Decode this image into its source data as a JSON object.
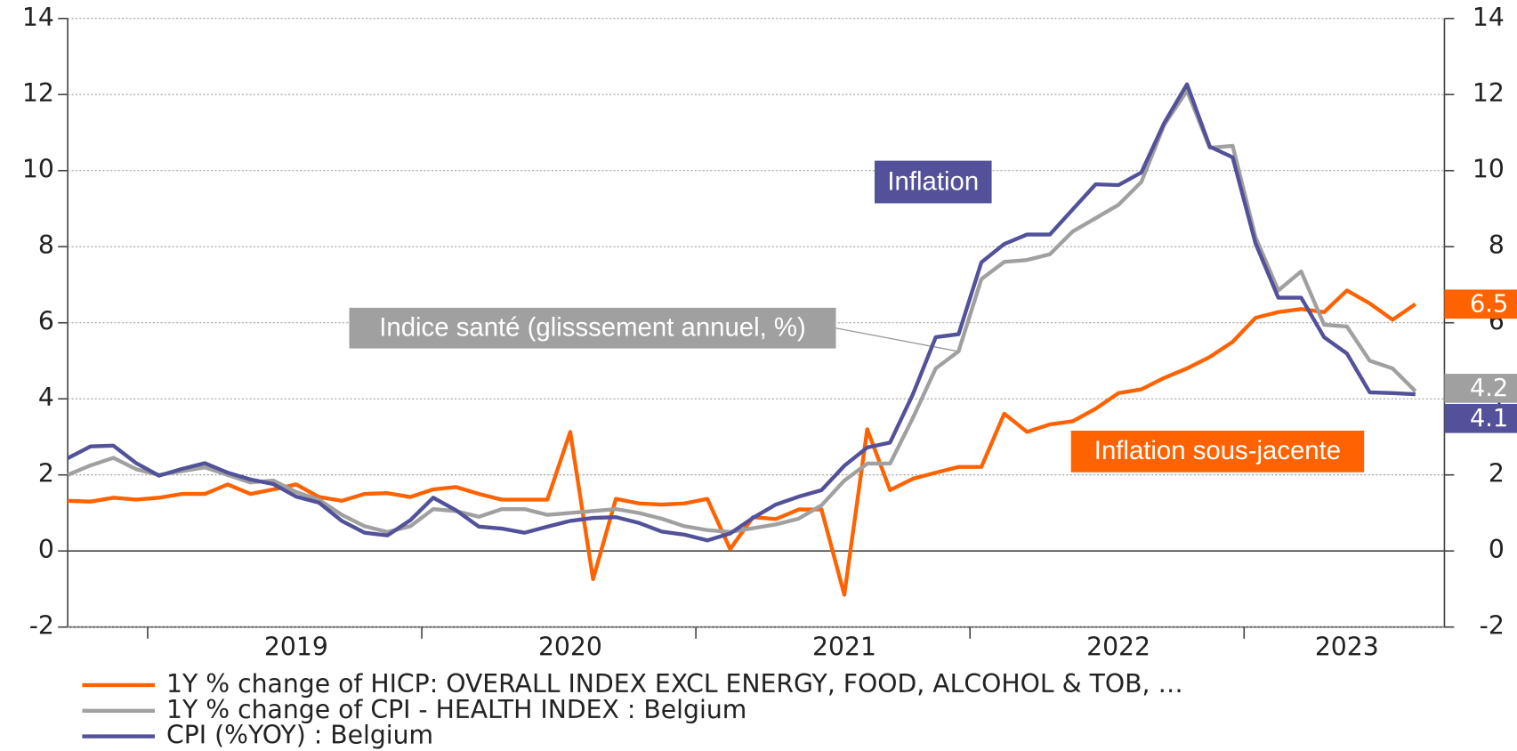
{
  "chart_data": {
    "type": "line",
    "categories": [
      null,
      null,
      null,
      null,
      null,
      null,
      null,
      null,
      null,
      null,
      "2019",
      null,
      null,
      null,
      null,
      null,
      null,
      null,
      null,
      null,
      null,
      null,
      "2020",
      null,
      null,
      null,
      null,
      null,
      null,
      null,
      null,
      null,
      null,
      null,
      "2021",
      null,
      null,
      null,
      null,
      null,
      null,
      null,
      null,
      null,
      null,
      null,
      "2022",
      null,
      null,
      null,
      null,
      null,
      null,
      null,
      null,
      null,
      "2023",
      null,
      null,
      null
    ],
    "ylim": [
      -2,
      14
    ],
    "yticks": [
      -2,
      0,
      2,
      4,
      6,
      8,
      10,
      12,
      14
    ],
    "y2lim": [
      -2,
      14
    ],
    "y2ticks": [
      -2,
      0,
      2,
      4,
      6,
      8,
      10,
      12,
      14
    ],
    "grid": true,
    "legend": "bottom",
    "series": [
      {
        "name": "1Y % change of HICP: OVERALL INDEX EXCL ENERGY, FOOD, ALCOHOL & TOB, …",
        "color": "#ff6200",
        "values": [
          1.32,
          1.3,
          1.4,
          1.35,
          1.4,
          1.5,
          1.5,
          1.75,
          1.5,
          1.62,
          1.75,
          1.42,
          1.32,
          1.5,
          1.52,
          1.42,
          1.62,
          1.68,
          1.5,
          1.35,
          1.35,
          1.35,
          3.13,
          -0.74,
          1.37,
          1.25,
          1.22,
          1.25,
          1.37,
          0.05,
          0.89,
          0.84,
          1.09,
          1.09,
          -1.15,
          3.2,
          1.6,
          1.9,
          2.06,
          2.21,
          2.21,
          3.61,
          3.13,
          3.33,
          3.41,
          3.74,
          4.15,
          4.25,
          4.55,
          4.8,
          5.1,
          5.5,
          6.13,
          6.28,
          6.36,
          6.28,
          6.85,
          6.51,
          6.08,
          6.49
        ],
        "value_labels": [
          null,
          null,
          null,
          null,
          null,
          null,
          null,
          null,
          null,
          null,
          null,
          null,
          null,
          null,
          null,
          null,
          null,
          null,
          null,
          null,
          null,
          null,
          null,
          null,
          null,
          null,
          null,
          null,
          null,
          null,
          null,
          null,
          null,
          null,
          null,
          null,
          null,
          null,
          null,
          null,
          null,
          null,
          null,
          null,
          null,
          null,
          null,
          null,
          null,
          null,
          null,
          null,
          null,
          null,
          null,
          null,
          null,
          null,
          null,
          "6.5"
        ]
      },
      {
        "name": "1Y % change of CPI - HEALTH INDEX : Belgium",
        "color": "#a0a0a0",
        "values": [
          2.0,
          2.25,
          2.45,
          2.15,
          2.0,
          2.1,
          2.2,
          2.0,
          1.8,
          1.85,
          1.55,
          1.35,
          0.95,
          0.65,
          0.5,
          0.65,
          1.1,
          1.05,
          0.9,
          1.1,
          1.1,
          0.95,
          1.0,
          1.05,
          1.1,
          1.0,
          0.85,
          0.65,
          0.55,
          0.5,
          0.6,
          0.7,
          0.85,
          1.2,
          1.85,
          2.3,
          2.3,
          3.5,
          4.8,
          5.25,
          7.15,
          7.6,
          7.65,
          7.8,
          8.4,
          8.75,
          9.1,
          9.7,
          11.2,
          12.1,
          10.6,
          10.65,
          8.25,
          6.85,
          7.35,
          5.95,
          5.9,
          5.0,
          4.8,
          4.2
        ],
        "value_labels": [
          null,
          null,
          null,
          null,
          null,
          null,
          null,
          null,
          null,
          null,
          null,
          null,
          null,
          null,
          null,
          null,
          null,
          null,
          null,
          null,
          null,
          null,
          null,
          null,
          null,
          null,
          null,
          null,
          null,
          null,
          null,
          null,
          null,
          null,
          null,
          null,
          null,
          null,
          null,
          null,
          null,
          null,
          null,
          null,
          null,
          null,
          null,
          null,
          null,
          null,
          null,
          null,
          null,
          null,
          null,
          null,
          null,
          null,
          null,
          "4.2"
        ]
      },
      {
        "name": "CPI (%YOY) : Belgium",
        "color": "#525199",
        "values": [
          2.44,
          2.75,
          2.77,
          2.31,
          1.98,
          2.16,
          2.31,
          2.06,
          1.88,
          1.76,
          1.43,
          1.27,
          0.79,
          0.48,
          0.41,
          0.81,
          1.4,
          1.07,
          0.64,
          0.59,
          0.48,
          0.64,
          0.79,
          0.87,
          0.89,
          0.74,
          0.51,
          0.43,
          0.28,
          0.46,
          0.87,
          1.22,
          1.43,
          1.6,
          2.24,
          2.72,
          2.85,
          4.12,
          5.62,
          5.7,
          7.59,
          8.07,
          8.32,
          8.32,
          8.98,
          9.64,
          9.62,
          9.95,
          11.25,
          12.27,
          10.63,
          10.35,
          8.09,
          6.66,
          6.66,
          5.62,
          5.19,
          4.17,
          4.15,
          4.12
        ],
        "value_labels": [
          null,
          null,
          null,
          null,
          null,
          null,
          null,
          null,
          null,
          null,
          null,
          null,
          null,
          null,
          null,
          null,
          null,
          null,
          null,
          null,
          null,
          null,
          null,
          null,
          null,
          null,
          null,
          null,
          null,
          null,
          null,
          null,
          null,
          null,
          null,
          null,
          null,
          null,
          null,
          null,
          null,
          null,
          null,
          null,
          null,
          null,
          null,
          null,
          null,
          null,
          null,
          null,
          null,
          null,
          null,
          null,
          null,
          null,
          null,
          "4.1"
        ]
      }
    ],
    "annotations": [
      "Inflation",
      "Indice santé (glisssement annuel, %)",
      "Inflation sous-jacente"
    ]
  }
}
